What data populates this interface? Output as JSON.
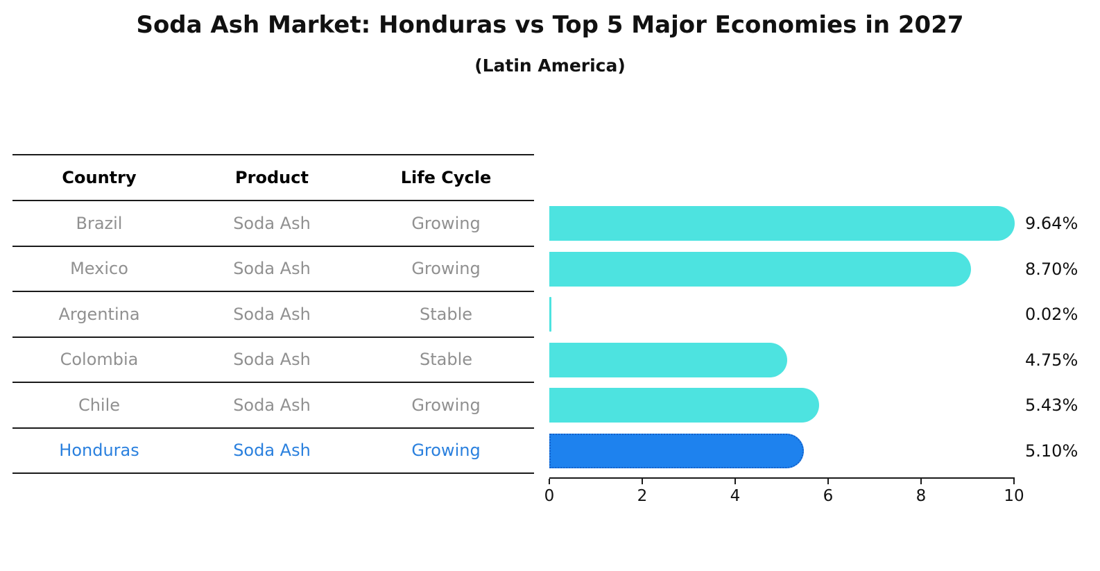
{
  "title": "Soda Ash Market: Honduras vs Top 5 Major Economies in 2027",
  "subtitle": "(Latin America)",
  "colors": {
    "bar_default": "#4de3e0",
    "bar_highlight": "#1e82ee",
    "bar_highlight_border": "#1560c8",
    "row_text": "#909090",
    "header_text": "#000000",
    "highlight_text": "#2a80de"
  },
  "table": {
    "headers": [
      "Country",
      "Product",
      "Life Cycle"
    ]
  },
  "chart_data": {
    "type": "bar",
    "orientation": "horizontal",
    "title": "Soda Ash Market: Honduras vs Top 5 Major Economies in 2027",
    "subtitle": "(Latin America)",
    "xlabel": "",
    "ylabel": "",
    "xlim": [
      0,
      10
    ],
    "xticks": [
      0,
      2,
      4,
      6,
      8,
      10
    ],
    "grid": false,
    "legend": false,
    "rows": [
      {
        "country": "Brazil",
        "product": "Soda Ash",
        "life_cycle": "Growing",
        "value": 9.64,
        "label": "9.64%",
        "highlight": false
      },
      {
        "country": "Mexico",
        "product": "Soda Ash",
        "life_cycle": "Growing",
        "value": 8.7,
        "label": "8.70%",
        "highlight": false
      },
      {
        "country": "Argentina",
        "product": "Soda Ash",
        "life_cycle": "Stable",
        "value": 0.02,
        "label": "0.02%",
        "highlight": false
      },
      {
        "country": "Colombia",
        "product": "Soda Ash",
        "life_cycle": "Stable",
        "value": 4.75,
        "label": "4.75%",
        "highlight": false
      },
      {
        "country": "Chile",
        "product": "Soda Ash",
        "life_cycle": "Growing",
        "value": 5.43,
        "label": "5.43%",
        "highlight": false
      },
      {
        "country": "Honduras",
        "product": "Soda Ash",
        "life_cycle": "Growing",
        "value": 5.1,
        "label": "5.10%",
        "highlight": true
      }
    ]
  }
}
